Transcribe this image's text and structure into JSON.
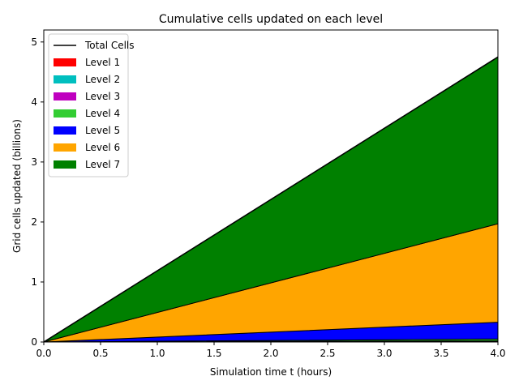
{
  "chart_data": {
    "type": "area",
    "title": "Cumulative cells updated on each level",
    "xlabel": "Simulation time t (hours)",
    "ylabel": "Grid cells updated (billions)",
    "xlim": [
      0,
      4
    ],
    "ylim": [
      0,
      5.2
    ],
    "xticks": [
      "0.0",
      "0.5",
      "1.0",
      "1.5",
      "2.0",
      "2.5",
      "3.0",
      "3.5",
      "4.0"
    ],
    "yticks": [
      "0",
      "1",
      "2",
      "3",
      "4",
      "5"
    ],
    "legend_position": "top-left",
    "grid": false,
    "x": [
      0,
      4
    ],
    "series": [
      {
        "name": "Level 1",
        "color": "#ff0000",
        "values": [
          0,
          0.004
        ]
      },
      {
        "name": "Level 2",
        "color": "#00bfbf",
        "values": [
          0,
          0.006
        ]
      },
      {
        "name": "Level 3",
        "color": "#bf00bf",
        "values": [
          0,
          0.01
        ]
      },
      {
        "name": "Level 4",
        "color": "#32cd32",
        "values": [
          0,
          0.03
        ]
      },
      {
        "name": "Level 5",
        "color": "#0000ff",
        "values": [
          0,
          0.28
        ]
      },
      {
        "name": "Level 6",
        "color": "#ffa500",
        "values": [
          0,
          1.64
        ]
      },
      {
        "name": "Level 7",
        "color": "#008000",
        "values": [
          0,
          2.78
        ]
      }
    ],
    "total": {
      "name": "Total Cells",
      "color": "#000000",
      "values": [
        0,
        4.75
      ]
    }
  }
}
